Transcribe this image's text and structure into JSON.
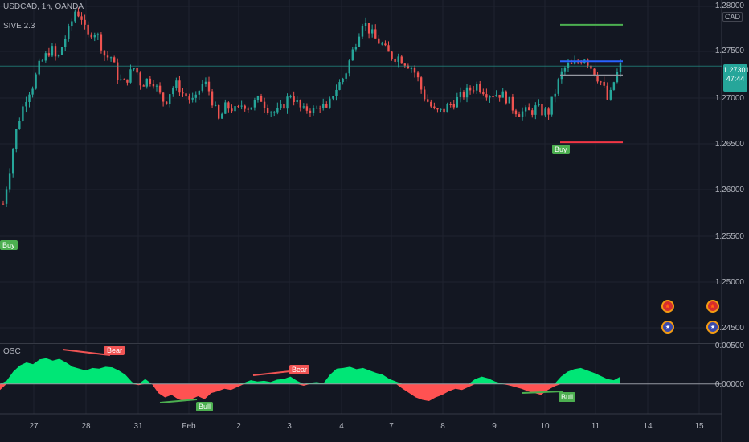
{
  "header": {
    "symbol_line": "USDCAD, 1h, OANDA",
    "indicator_line": "SIVE 2.3",
    "osc_label": "OSC",
    "currency_button": "CAD"
  },
  "price_axis": {
    "labels": [
      "1.28000",
      "1.27500",
      "1.27000",
      "1.26500",
      "1.26000",
      "1.25500",
      "1.25000",
      "1.24500"
    ],
    "current_price": "1.27301",
    "countdown": "47:44"
  },
  "osc_axis": {
    "labels": [
      "0.00500",
      "0.00000"
    ]
  },
  "time_axis": {
    "labels": [
      "27",
      "28",
      "31",
      "Feb",
      "2",
      "3",
      "4",
      "7",
      "8",
      "9",
      "10",
      "11",
      "14",
      "15"
    ]
  },
  "signals": {
    "buy_main": "Buy",
    "buy_left": "Buy",
    "bear_1": "Bear",
    "bear_2": "Bear",
    "bull_1": "Bull",
    "bull_2": "Bull"
  },
  "colors": {
    "bg": "#131722",
    "up": "#26a69a",
    "down": "#ef5350",
    "osc_pos": "#00e676",
    "osc_neg": "#ff5252",
    "buy": "#4caf50",
    "bear": "#f05454",
    "target_line": "#4caf50",
    "entry_line": "#2962ff",
    "stop_line": "#f23645"
  },
  "event_icons": [
    "flag-ca-icon",
    "flag-us-icon"
  ],
  "chart_data": {
    "type": "candlestick",
    "symbol": "USDCAD",
    "timeframe": "1h",
    "x_labels": [
      "27",
      "28",
      "31",
      "Feb",
      "2",
      "3",
      "4",
      "7",
      "8",
      "9",
      "10",
      "11",
      "14",
      "15"
    ],
    "ylim": [
      1.244,
      1.2815
    ],
    "close_path": [
      1.2585,
      1.262,
      1.266,
      1.2685,
      1.2705,
      1.2715,
      1.2735,
      1.2745,
      1.2755,
      1.274,
      1.276,
      1.2775,
      1.2795,
      1.279,
      1.2765,
      1.2775,
      1.2765,
      1.2745,
      1.2745,
      1.2725,
      1.2715,
      1.2725,
      1.2735,
      1.2715,
      1.272,
      1.272,
      1.2705,
      1.2695,
      1.271,
      1.2715,
      1.2705,
      1.27,
      1.2695,
      1.2715,
      1.2715,
      1.2695,
      1.2675,
      1.269,
      1.269,
      1.2685,
      1.2695,
      1.269,
      1.2695,
      1.27,
      1.269,
      1.2685,
      1.2685,
      1.2695,
      1.2705,
      1.2695,
      1.2685,
      1.269,
      1.2685,
      1.2695,
      1.2685,
      1.2705,
      1.2715,
      1.2725,
      1.2745,
      1.2765,
      1.2785,
      1.2775,
      1.2765,
      1.276,
      1.275,
      1.2745,
      1.2745,
      1.274,
      1.2735,
      1.2725,
      1.2705,
      1.2695,
      1.2685,
      1.2685,
      1.269,
      1.2695,
      1.27,
      1.2705,
      1.271,
      1.2715,
      1.271,
      1.2705,
      1.2705,
      1.2705,
      1.27,
      1.269,
      1.2685,
      1.2685,
      1.2685,
      1.269,
      1.2685,
      1.2685,
      1.2705,
      1.2725,
      1.2735,
      1.2735,
      1.274,
      1.2745,
      1.2735,
      1.2725,
      1.2715,
      1.2695,
      1.272,
      1.2735
    ],
    "levels": {
      "target": 1.278,
      "entry": 1.2735,
      "mid": 1.2725,
      "stop": 1.2652
    },
    "oscillator": {
      "ylim": [
        -0.0045,
        0.006
      ],
      "values": [
        -0.001,
        0.0005,
        0.002,
        0.003,
        0.0035,
        0.0032,
        0.004,
        0.0042,
        0.0038,
        0.0041,
        0.0035,
        0.0028,
        0.0025,
        0.0022,
        0.0026,
        0.0025,
        0.0028,
        0.0027,
        0.0022,
        0.0015,
        0.0003,
        -0.0002,
        0.0008,
        0.0,
        -0.0015,
        -0.0022,
        -0.0018,
        -0.0025,
        -0.0028,
        -0.0025,
        -0.002,
        -0.0025,
        -0.0015,
        -0.0012,
        -0.0008,
        -0.001,
        -0.0005,
        0.0002,
        0.0006,
        0.0004,
        0.0005,
        0.0003,
        0.0007,
        0.0008,
        0.0012,
        0.0005,
        -0.0003,
        0.0002,
        0.0003,
        0.0001,
        0.0015,
        0.0025,
        0.0026,
        0.0028,
        0.0024,
        0.0026,
        0.0022,
        0.0018,
        0.0015,
        0.0008,
        0.0004,
        -0.0008,
        -0.0015,
        -0.0022,
        -0.0026,
        -0.0028,
        -0.0022,
        -0.0018,
        -0.0012,
        -0.0008,
        -0.001,
        -0.0005,
        0.0008,
        0.0012,
        0.0009,
        0.0004,
        0.0001,
        -0.0002,
        -0.0005,
        -0.0008,
        -0.0012,
        -0.0015,
        -0.0018,
        -0.001,
        -0.0004,
        0.0012,
        0.002,
        0.0024,
        0.0026,
        0.0022,
        0.0018,
        0.0013,
        0.0008,
        0.0006,
        0.0012
      ]
    }
  }
}
